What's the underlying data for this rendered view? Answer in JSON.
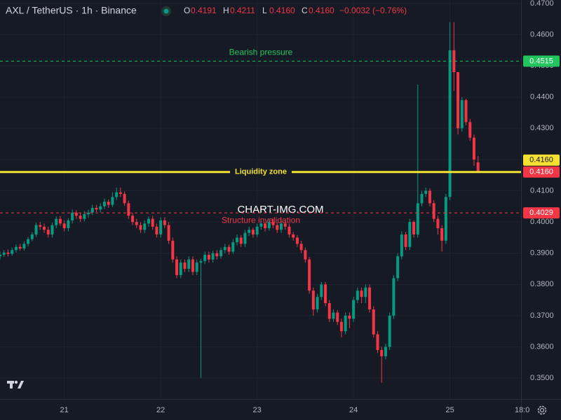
{
  "chart_data": {
    "type": "candlestick",
    "title": "AXL / TetherUS · 1h · Binance",
    "ohlc_legend": [
      {
        "key": "O",
        "text": "0.4191"
      },
      {
        "key": "H",
        "text": "0.4211"
      },
      {
        "key": "L",
        "text": "0.4160"
      },
      {
        "key": "C",
        "text": "0.4160"
      }
    ],
    "change": "−0.0032 (−0.76%)",
    "watermark": "CHART-IMG.COM",
    "up_color": "#089981",
    "down_color": "#f23645",
    "grid": true,
    "x": [
      0,
      1,
      2,
      3,
      4,
      5,
      6,
      7,
      8,
      9,
      10,
      11,
      12,
      13,
      14,
      15,
      16,
      17,
      18,
      19,
      20,
      21,
      22,
      23,
      24,
      25,
      26,
      27,
      28,
      29,
      30,
      31,
      32,
      33,
      34,
      35,
      36,
      37,
      38,
      39,
      40,
      41,
      42,
      43,
      44,
      45,
      46,
      47,
      48,
      49,
      50,
      51,
      52,
      53,
      54,
      55,
      56,
      57,
      58,
      59,
      60,
      61,
      62,
      63,
      64,
      65,
      66,
      67,
      68,
      69,
      70,
      71,
      72,
      73,
      74,
      75,
      76,
      77,
      78,
      79,
      80,
      81,
      82,
      83,
      84,
      85,
      86,
      87,
      88,
      89,
      90,
      91,
      92,
      93,
      94,
      95,
      96,
      97,
      98,
      99,
      100,
      101,
      102,
      103,
      104,
      105,
      106,
      107,
      108,
      109,
      110,
      111,
      112,
      113,
      114,
      115,
      116,
      117,
      118,
      119
    ],
    "open": [
      0.389,
      0.3895,
      0.3902,
      0.3898,
      0.391,
      0.392,
      0.3915,
      0.393,
      0.3945,
      0.396,
      0.399,
      0.3985,
      0.3975,
      0.396,
      0.399,
      0.401,
      0.3995,
      0.398,
      0.4005,
      0.403,
      0.402,
      0.401,
      0.4025,
      0.403,
      0.4045,
      0.404,
      0.405,
      0.4065,
      0.4055,
      0.408,
      0.4095,
      0.409,
      0.406,
      0.402,
      0.4,
      0.399,
      0.3975,
      0.3995,
      0.401,
      0.3985,
      0.396,
      0.4005,
      0.399,
      0.394,
      0.388,
      0.383,
      0.387,
      0.385,
      0.388,
      0.384,
      0.387,
      0.3875,
      0.3895,
      0.388,
      0.39,
      0.389,
      0.391,
      0.392,
      0.3905,
      0.3935,
      0.395,
      0.393,
      0.3965,
      0.3975,
      0.396,
      0.3985,
      0.3995,
      0.398,
      0.4,
      0.399,
      0.3975,
      0.3995,
      0.3985,
      0.396,
      0.395,
      0.393,
      0.391,
      0.388,
      0.378,
      0.372,
      0.376,
      0.38,
      0.374,
      0.369,
      0.371,
      0.368,
      0.365,
      0.37,
      0.369,
      0.375,
      0.378,
      0.376,
      0.379,
      0.372,
      0.364,
      0.359,
      0.357,
      0.36,
      0.37,
      0.382,
      0.389,
      0.396,
      0.392,
      0.4,
      0.396,
      0.406,
      0.409,
      0.41,
      0.406,
      0.401,
      0.398,
      0.394,
      0.408,
      0.455,
      0.448,
      0.43,
      0.439,
      0.432,
      0.427,
      0.4191
    ],
    "high": [
      0.3905,
      0.391,
      0.3912,
      0.3918,
      0.3928,
      0.393,
      0.3938,
      0.3952,
      0.3968,
      0.3998,
      0.4,
      0.3995,
      0.3985,
      0.3998,
      0.4018,
      0.402,
      0.4005,
      0.4012,
      0.404,
      0.4038,
      0.403,
      0.4035,
      0.404,
      0.4055,
      0.4055,
      0.406,
      0.4075,
      0.4072,
      0.4095,
      0.411,
      0.411,
      0.4098,
      0.4068,
      0.403,
      0.401,
      0.4,
      0.4005,
      0.4018,
      0.402,
      0.3995,
      0.4015,
      0.4015,
      0.4,
      0.395,
      0.389,
      0.388,
      0.388,
      0.389,
      0.389,
      0.388,
      0.3882,
      0.3905,
      0.3905,
      0.3908,
      0.391,
      0.3918,
      0.393,
      0.3928,
      0.3945,
      0.396,
      0.3958,
      0.3975,
      0.3985,
      0.3982,
      0.3995,
      0.4005,
      0.4,
      0.401,
      0.401,
      0.3998,
      0.4005,
      0.4005,
      0.3995,
      0.3968,
      0.3958,
      0.394,
      0.3918,
      0.3888,
      0.379,
      0.377,
      0.3808,
      0.3808,
      0.375,
      0.372,
      0.3718,
      0.369,
      0.371,
      0.371,
      0.376,
      0.379,
      0.379,
      0.38,
      0.38,
      0.373,
      0.365,
      0.36,
      0.361,
      0.371,
      0.383,
      0.39,
      0.397,
      0.3968,
      0.401,
      0.4005,
      0.444,
      0.41,
      0.411,
      0.4108,
      0.407,
      0.402,
      0.399,
      0.409,
      0.464,
      0.464,
      0.448,
      0.44,
      0.4395,
      0.433,
      0.428,
      0.4211
    ],
    "low": [
      0.388,
      0.3888,
      0.389,
      0.3892,
      0.3902,
      0.3908,
      0.3908,
      0.3922,
      0.3938,
      0.3952,
      0.3975,
      0.3965,
      0.395,
      0.395,
      0.398,
      0.3988,
      0.397,
      0.397,
      0.3995,
      0.401,
      0.4,
      0.4002,
      0.4015,
      0.4022,
      0.4032,
      0.403,
      0.4042,
      0.4045,
      0.4048,
      0.407,
      0.408,
      0.4052,
      0.401,
      0.399,
      0.398,
      0.3965,
      0.3965,
      0.3985,
      0.3975,
      0.395,
      0.395,
      0.398,
      0.393,
      0.387,
      0.382,
      0.382,
      0.384,
      0.384,
      0.383,
      0.383,
      0.35,
      0.3865,
      0.387,
      0.387,
      0.388,
      0.3882,
      0.39,
      0.3895,
      0.3898,
      0.3925,
      0.392,
      0.392,
      0.3955,
      0.395,
      0.3952,
      0.3975,
      0.397,
      0.3972,
      0.398,
      0.3965,
      0.3965,
      0.3975,
      0.395,
      0.394,
      0.392,
      0.39,
      0.387,
      0.377,
      0.37,
      0.371,
      0.375,
      0.373,
      0.368,
      0.368,
      0.367,
      0.363,
      0.364,
      0.366,
      0.368,
      0.374,
      0.374,
      0.374,
      0.371,
      0.363,
      0.358,
      0.3485,
      0.356,
      0.359,
      0.369,
      0.381,
      0.388,
      0.391,
      0.391,
      0.395,
      0.395,
      0.405,
      0.408,
      0.405,
      0.4,
      0.396,
      0.3905,
      0.393,
      0.407,
      0.442,
      0.428,
      0.429,
      0.431,
      0.426,
      0.418,
      0.416
    ],
    "close": [
      0.3895,
      0.3902,
      0.3898,
      0.391,
      0.392,
      0.3915,
      0.393,
      0.3945,
      0.396,
      0.399,
      0.3985,
      0.3975,
      0.396,
      0.399,
      0.401,
      0.3995,
      0.398,
      0.4005,
      0.403,
      0.402,
      0.401,
      0.4025,
      0.403,
      0.4045,
      0.404,
      0.405,
      0.4065,
      0.4055,
      0.408,
      0.4095,
      0.409,
      0.406,
      0.402,
      0.4,
      0.399,
      0.3975,
      0.3995,
      0.401,
      0.3985,
      0.396,
      0.4005,
      0.399,
      0.394,
      0.388,
      0.383,
      0.387,
      0.385,
      0.388,
      0.384,
      0.387,
      0.3875,
      0.3895,
      0.388,
      0.39,
      0.389,
      0.391,
      0.392,
      0.3905,
      0.3935,
      0.395,
      0.393,
      0.3965,
      0.3975,
      0.396,
      0.3985,
      0.3995,
      0.398,
      0.4,
      0.399,
      0.3975,
      0.3995,
      0.3985,
      0.396,
      0.395,
      0.393,
      0.391,
      0.388,
      0.378,
      0.372,
      0.376,
      0.38,
      0.374,
      0.369,
      0.371,
      0.368,
      0.365,
      0.37,
      0.369,
      0.375,
      0.378,
      0.376,
      0.379,
      0.372,
      0.364,
      0.359,
      0.357,
      0.36,
      0.37,
      0.382,
      0.389,
      0.396,
      0.392,
      0.4,
      0.396,
      0.406,
      0.409,
      0.41,
      0.406,
      0.401,
      0.398,
      0.394,
      0.408,
      0.455,
      0.448,
      0.43,
      0.439,
      0.432,
      0.427,
      0.42,
      0.416
    ],
    "xlim": [
      0,
      129.7
    ],
    "xticks": [
      {
        "value": 16,
        "label": "21"
      },
      {
        "value": 40,
        "label": "22"
      },
      {
        "value": 64,
        "label": "23"
      },
      {
        "value": 88,
        "label": "24"
      },
      {
        "value": 112,
        "label": "25"
      },
      {
        "value": 130,
        "label": "18:0"
      }
    ],
    "ylim": [
      0.3433,
      0.4711
    ],
    "yticks": [
      {
        "value": 0.35,
        "label": "0.3500"
      },
      {
        "value": 0.36,
        "label": "0.3600"
      },
      {
        "value": 0.37,
        "label": "0.3700"
      },
      {
        "value": 0.38,
        "label": "0.3800"
      },
      {
        "value": 0.39,
        "label": "0.3900"
      },
      {
        "value": 0.4,
        "label": "0.4000"
      },
      {
        "value": 0.41,
        "label": "0.4100"
      },
      {
        "value": 0.42,
        "label": "0.4200"
      },
      {
        "value": 0.43,
        "label": "0.4300"
      },
      {
        "value": 0.44,
        "label": "0.4400"
      },
      {
        "value": 0.45,
        "label": "0.4500"
      },
      {
        "value": 0.46,
        "label": "0.4600"
      },
      {
        "value": 0.47,
        "label": "0.4700"
      }
    ],
    "levels": [
      {
        "label": "Bearish pressure",
        "value": 0.4515,
        "value_label": "0.4515",
        "color": "#22c55e",
        "style": "dashed"
      },
      {
        "label": "Liquidity zone",
        "value": 0.416,
        "value_label": "0.4160",
        "color": "#f5e131",
        "style": "solid"
      },
      {
        "label": "Structure invalidation",
        "value": 0.4029,
        "value_label": "0.4029",
        "color": "#f23645",
        "style": "dashed"
      }
    ],
    "last_price": {
      "value": 0.416,
      "label": "0.4160",
      "color": "#f23645"
    }
  }
}
